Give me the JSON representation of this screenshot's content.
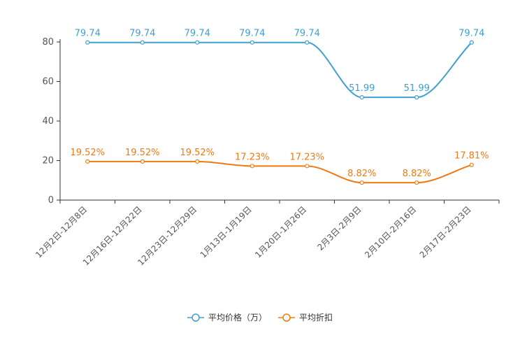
{
  "chart_data": {
    "type": "line",
    "categories": [
      "12月2日-12月8日",
      "12月16日-12月22日",
      "12月23日-12月29日",
      "1月13日-1月19日",
      "1月20日-1月26日",
      "2月3日-2月9日",
      "2月10日-2月16日",
      "2月17日-2月23日"
    ],
    "ylim": [
      0,
      80
    ],
    "yticks": [
      0,
      20,
      40,
      60,
      80
    ],
    "legend_position": "bottom",
    "series": [
      {
        "name": "平均价格（万）",
        "color": "#3fa0d0",
        "values": [
          79.74,
          79.74,
          79.74,
          79.74,
          79.74,
          51.99,
          51.99,
          79.74
        ],
        "labels": [
          "79.74",
          "79.74",
          "79.74",
          "79.74",
          "79.74",
          "51.99",
          "51.99",
          "79.74"
        ]
      },
      {
        "name": "平均折扣",
        "color": "#f07a12",
        "values": [
          19.52,
          19.52,
          19.52,
          17.23,
          17.23,
          8.82,
          8.82,
          17.81
        ],
        "labels": [
          "19.52%",
          "19.52%",
          "19.52%",
          "17.23%",
          "17.23%",
          "8.82%",
          "8.82%",
          "17.81%"
        ]
      }
    ]
  }
}
